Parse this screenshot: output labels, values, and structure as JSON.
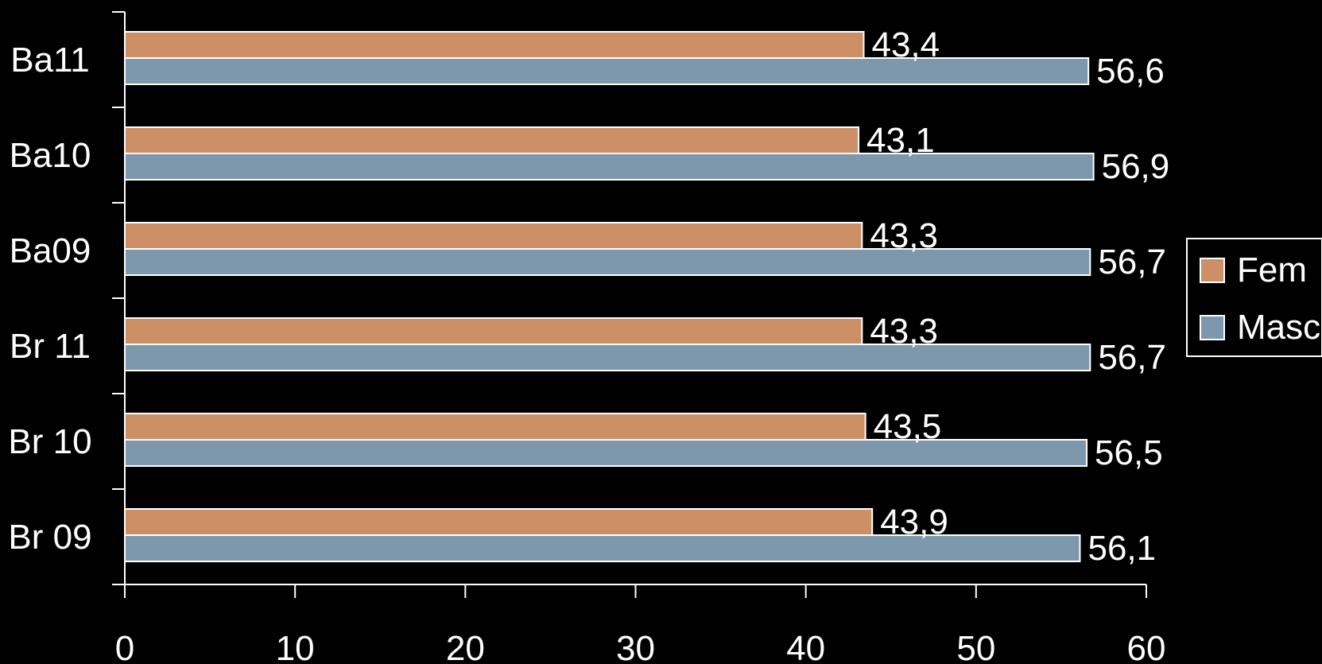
{
  "chart_data": {
    "type": "bar",
    "orientation": "horizontal",
    "categories": [
      "Ba11",
      "Ba10",
      "Ba09",
      "Br 11",
      "Br 10",
      "Br 09"
    ],
    "series": [
      {
        "name": "Fem",
        "color": "#cc8f66",
        "values": [
          43.4,
          43.1,
          43.3,
          43.3,
          43.5,
          43.9
        ],
        "labels": [
          "43,4",
          "43,1",
          "43,3",
          "43,3",
          "43,5",
          "43,9"
        ]
      },
      {
        "name": "Masc",
        "color": "#7d98ad",
        "values": [
          56.6,
          56.9,
          56.7,
          56.7,
          56.5,
          56.1
        ],
        "labels": [
          "56,6",
          "56,9",
          "56,7",
          "56,7",
          "56,5",
          "56,1"
        ]
      }
    ],
    "xticks": [
      "0",
      "10",
      "20",
      "30",
      "40",
      "50",
      "60"
    ],
    "xlim": [
      0,
      60
    ],
    "grid": false,
    "legend_position": "right",
    "title": "",
    "xlabel": "",
    "ylabel": ""
  },
  "colors": {
    "background": "#000000",
    "text": "#ffffff",
    "axis": "#ffffff",
    "bar_border": "#ffffff"
  }
}
